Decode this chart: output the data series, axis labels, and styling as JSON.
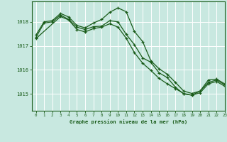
{
  "title": "Graphe pression niveau de la mer (hPa)",
  "bg_color": "#c8e8e0",
  "grid_color": "#ffffff",
  "line_color": "#1a5c1a",
  "xlim": [
    -0.5,
    23
  ],
  "ylim": [
    1014.3,
    1018.85
  ],
  "yticks": [
    1015,
    1016,
    1017,
    1018
  ],
  "xticks": [
    0,
    1,
    2,
    3,
    4,
    5,
    6,
    7,
    8,
    9,
    10,
    11,
    12,
    13,
    14,
    15,
    16,
    17,
    18,
    19,
    20,
    21,
    22,
    23
  ],
  "series1_x": [
    0,
    1,
    2,
    3,
    4,
    5,
    6,
    7,
    8,
    9,
    10,
    11,
    12,
    13,
    14,
    15,
    16,
    17,
    18,
    19,
    20,
    21,
    22,
    23
  ],
  "series1_y": [
    1017.45,
    1018.0,
    1018.05,
    1018.35,
    1018.2,
    1017.85,
    1017.75,
    1017.95,
    1018.1,
    1018.4,
    1018.58,
    1018.42,
    1017.6,
    1017.18,
    1016.38,
    1016.05,
    1015.82,
    1015.48,
    1015.12,
    1015.02,
    1015.12,
    1015.58,
    1015.62,
    1015.42
  ],
  "series2_x": [
    0,
    1,
    2,
    3,
    4,
    5,
    6,
    7,
    8,
    9,
    10,
    11,
    12,
    13,
    14,
    15,
    16,
    17,
    18,
    19,
    20,
    21,
    22,
    23
  ],
  "series2_y": [
    1017.35,
    1017.95,
    1018.0,
    1018.28,
    1018.1,
    1017.78,
    1017.68,
    1017.8,
    1017.82,
    1018.05,
    1018.0,
    1017.48,
    1017.05,
    1016.5,
    1016.32,
    1015.88,
    1015.68,
    1015.28,
    1015.0,
    1014.95,
    1015.05,
    1015.42,
    1015.52,
    1015.32
  ],
  "series3_x": [
    0,
    3,
    4,
    5,
    6,
    7,
    8,
    9,
    10,
    11,
    12,
    13,
    14,
    15,
    16,
    17,
    18,
    19,
    20,
    21,
    22,
    23
  ],
  "series3_y": [
    1017.3,
    1018.22,
    1018.08,
    1017.68,
    1017.58,
    1017.72,
    1017.78,
    1017.92,
    1017.78,
    1017.32,
    1016.72,
    1016.28,
    1015.98,
    1015.65,
    1015.42,
    1015.22,
    1015.02,
    1014.95,
    1015.12,
    1015.48,
    1015.58,
    1015.38
  ]
}
